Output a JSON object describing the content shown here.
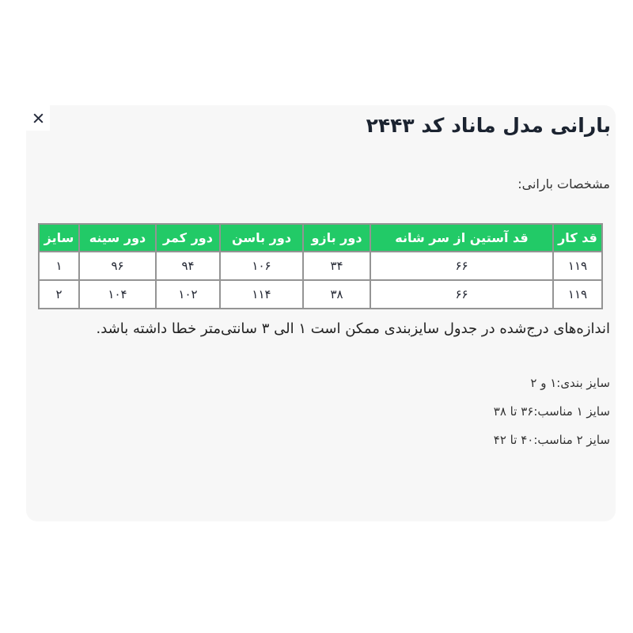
{
  "modal": {
    "title": "بارانی مدل ماناد کد ۲۴۴۳",
    "close_icon": "x-cross",
    "spec_label": "مشخصات بارانی:",
    "table": {
      "headers": [
        "قد کار",
        "قد آستین از سر شانه",
        "دور بازو",
        "دور باسن",
        "دور کمر",
        "دور سینه",
        "سایز"
      ],
      "rows": [
        [
          "۱۱۹",
          "۶۶",
          "۳۴",
          "۱۰۶",
          "۹۴",
          "۹۶",
          "۱"
        ],
        [
          "۱۱۹",
          "۶۶",
          "۳۸",
          "۱۱۴",
          "۱۰۲",
          "۱۰۴",
          "۲"
        ]
      ]
    },
    "tolerance_note": "اندازه‌های درج‌شده در جدول سایزبندی ممکن است ۱ الی ۳ سانتی‌متر خطا داشته باشد.",
    "size_lines": [
      "سایز بندی:۱ و ۲",
      "سایز ۱ مناسب:۳۶ تا ۳۸",
      "سایز ۲ مناسب:۴۰ تا ۴۲"
    ],
    "colors": {
      "header_green": "#22ca67",
      "panel_bg": "#f7f7f7",
      "table_border": "#949494",
      "title_color": "#1b2330",
      "text_color": "#333333"
    }
  }
}
